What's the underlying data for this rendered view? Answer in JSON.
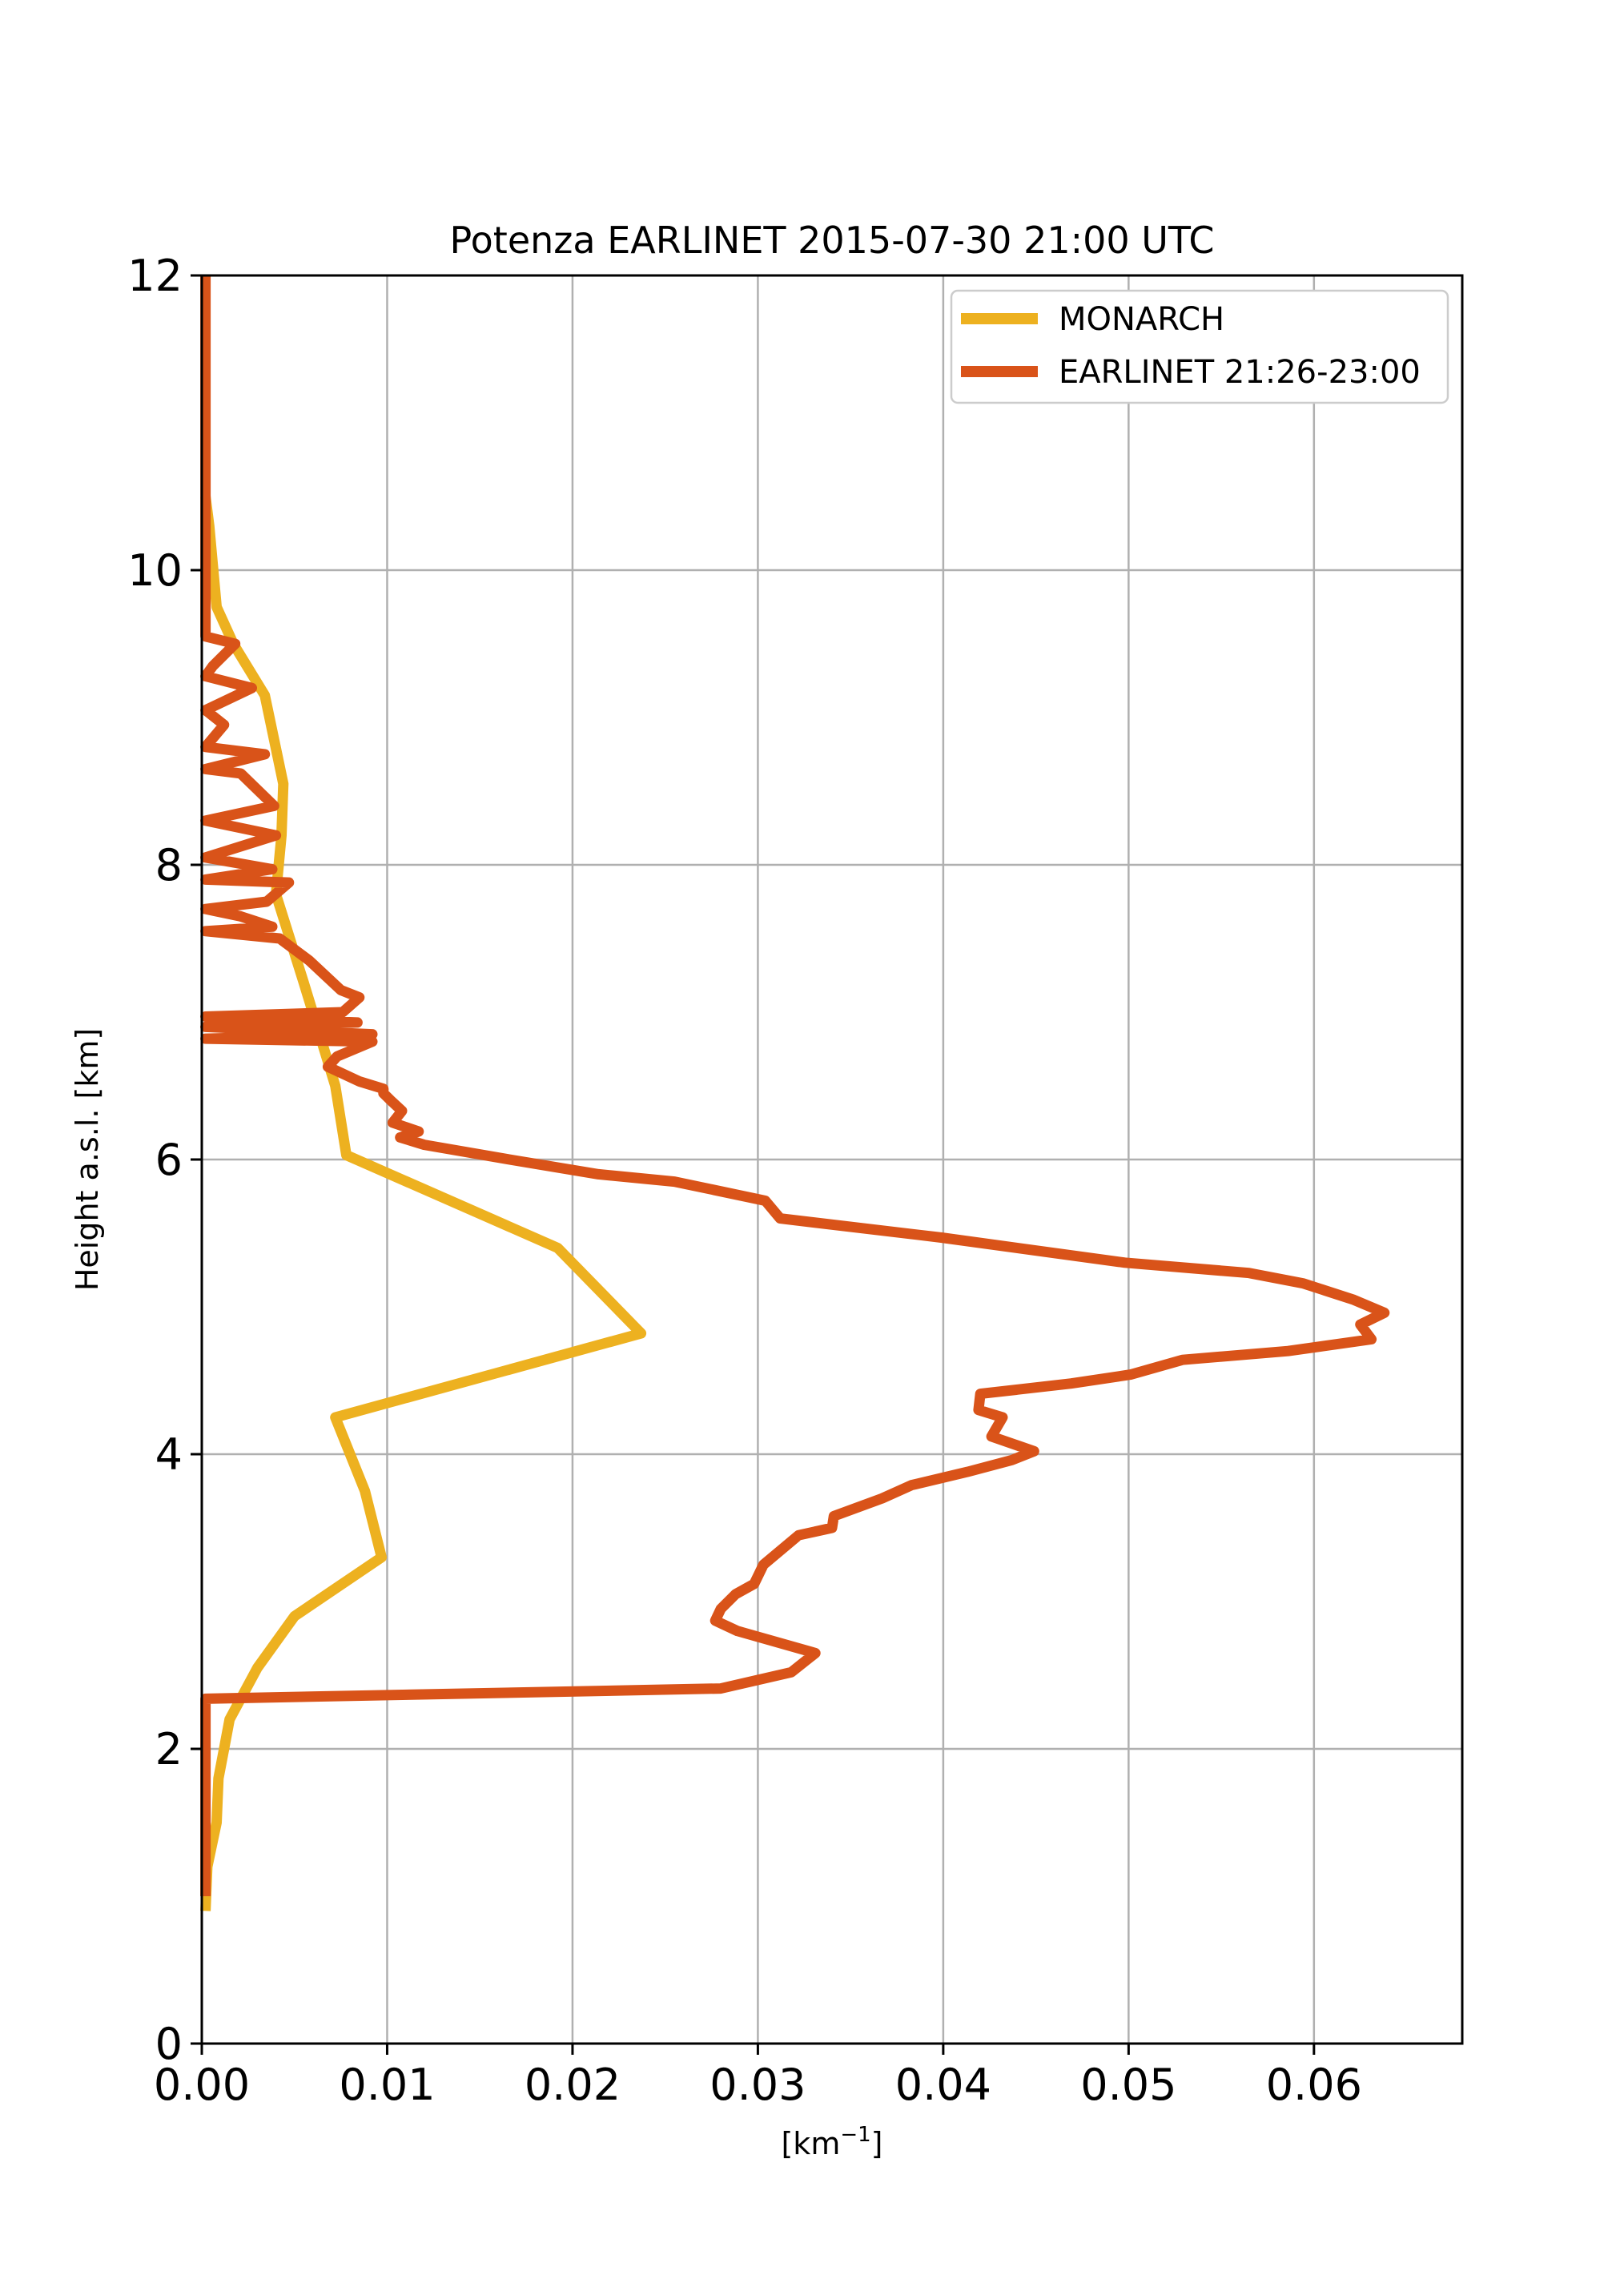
{
  "chart_data": {
    "type": "line",
    "title": "Potenza EARLINET 2015-07-30 21:00 UTC",
    "xlabel_base": "[km",
    "xlabel_sup": "−1",
    "xlabel_end": "]",
    "ylabel": "Height a.s.l. [km]",
    "xlim": [
      0,
      0.068
    ],
    "ylim": [
      0,
      12
    ],
    "xticks": [
      0.0,
      0.01,
      0.02,
      0.03,
      0.04,
      0.05,
      0.06
    ],
    "xtick_labels": [
      "0.00",
      "0.01",
      "0.02",
      "0.03",
      "0.04",
      "0.05",
      "0.06"
    ],
    "yticks": [
      0,
      2,
      4,
      6,
      8,
      10,
      12
    ],
    "ytick_labels": [
      "0",
      "2",
      "4",
      "6",
      "8",
      "10",
      "12"
    ],
    "grid": true,
    "legend_position": "top-right",
    "series": [
      {
        "name": "MONARCH",
        "color": "#EDB120",
        "points": [
          [
            0.0002,
            0.9
          ],
          [
            0.0003,
            1.2
          ],
          [
            0.0008,
            1.5
          ],
          [
            0.0009,
            1.8
          ],
          [
            0.0012,
            2.0
          ],
          [
            0.0015,
            2.2
          ],
          [
            0.003,
            2.55
          ],
          [
            0.005,
            2.9
          ],
          [
            0.0097,
            3.3
          ],
          [
            0.0088,
            3.75
          ],
          [
            0.0072,
            4.25
          ],
          [
            0.0237,
            4.82
          ],
          [
            0.0192,
            5.4
          ],
          [
            0.0078,
            6.03
          ],
          [
            0.0072,
            6.5
          ],
          [
            0.0055,
            7.2
          ],
          [
            0.004,
            7.8
          ],
          [
            0.0043,
            8.2
          ],
          [
            0.0044,
            8.55
          ],
          [
            0.0034,
            9.15
          ],
          [
            0.0017,
            9.5
          ],
          [
            0.0008,
            9.75
          ],
          [
            0.0004,
            10.3
          ],
          [
            0.0002,
            10.5
          ]
        ]
      },
      {
        "name": "EARLINET 21:26-23:00",
        "color": "#D95319",
        "points": [
          [
            0.0002,
            1.0
          ],
          [
            0.0002,
            2.34
          ],
          [
            0.028,
            2.41
          ],
          [
            0.0318,
            2.52
          ],
          [
            0.0331,
            2.65
          ],
          [
            0.0289,
            2.8
          ],
          [
            0.0277,
            2.87
          ],
          [
            0.028,
            2.95
          ],
          [
            0.0288,
            3.05
          ],
          [
            0.0298,
            3.12
          ],
          [
            0.0303,
            3.25
          ],
          [
            0.0322,
            3.45
          ],
          [
            0.034,
            3.5
          ],
          [
            0.0341,
            3.58
          ],
          [
            0.0367,
            3.7
          ],
          [
            0.0383,
            3.79
          ],
          [
            0.0413,
            3.88
          ],
          [
            0.0437,
            3.96
          ],
          [
            0.0449,
            4.02
          ],
          [
            0.0426,
            4.12
          ],
          [
            0.0432,
            4.25
          ],
          [
            0.0419,
            4.3
          ],
          [
            0.042,
            4.41
          ],
          [
            0.0469,
            4.48
          ],
          [
            0.0501,
            4.54
          ],
          [
            0.0529,
            4.64
          ],
          [
            0.0586,
            4.7
          ],
          [
            0.0631,
            4.78
          ],
          [
            0.0625,
            4.88
          ],
          [
            0.0638,
            4.96
          ],
          [
            0.0621,
            5.05
          ],
          [
            0.0594,
            5.16
          ],
          [
            0.0565,
            5.23
          ],
          [
            0.0498,
            5.3
          ],
          [
            0.0399,
            5.47
          ],
          [
            0.0312,
            5.6
          ],
          [
            0.0304,
            5.72
          ],
          [
            0.0255,
            5.85
          ],
          [
            0.0214,
            5.9
          ],
          [
            0.0166,
            6.0
          ],
          [
            0.012,
            6.1
          ],
          [
            0.0107,
            6.15
          ],
          [
            0.0117,
            6.19
          ],
          [
            0.0103,
            6.25
          ],
          [
            0.0108,
            6.33
          ],
          [
            0.0102,
            6.4
          ],
          [
            0.0098,
            6.45
          ],
          [
            0.0098,
            6.48
          ],
          [
            0.0085,
            6.53
          ],
          [
            0.0068,
            6.63
          ],
          [
            0.0073,
            6.7
          ],
          [
            0.0092,
            6.8
          ],
          [
            0.0002,
            6.82
          ],
          [
            0.0092,
            6.85
          ],
          [
            0.0002,
            6.9
          ],
          [
            0.0084,
            6.93
          ],
          [
            0.0002,
            6.97
          ],
          [
            0.0076,
            7.0
          ],
          [
            0.0085,
            7.1
          ],
          [
            0.0075,
            7.15
          ],
          [
            0.0058,
            7.35
          ],
          [
            0.0042,
            7.5
          ],
          [
            0.0002,
            7.55
          ],
          [
            0.0038,
            7.58
          ],
          [
            0.0021,
            7.65
          ],
          [
            0.0002,
            7.7
          ],
          [
            0.0035,
            7.75
          ],
          [
            0.0047,
            7.88
          ],
          [
            0.0002,
            7.9
          ],
          [
            0.0038,
            7.97
          ],
          [
            0.0002,
            8.05
          ],
          [
            0.004,
            8.2
          ],
          [
            0.0002,
            8.3
          ],
          [
            0.0039,
            8.4
          ],
          [
            0.0021,
            8.62
          ],
          [
            0.0002,
            8.65
          ],
          [
            0.0034,
            8.75
          ],
          [
            0.0002,
            8.8
          ],
          [
            0.0012,
            8.95
          ],
          [
            0.0002,
            9.05
          ],
          [
            0.0027,
            9.2
          ],
          [
            0.0002,
            9.28
          ],
          [
            0.0006,
            9.35
          ],
          [
            0.0018,
            9.5
          ],
          [
            0.0002,
            9.55
          ],
          [
            0.0002,
            12.0
          ]
        ]
      }
    ]
  }
}
